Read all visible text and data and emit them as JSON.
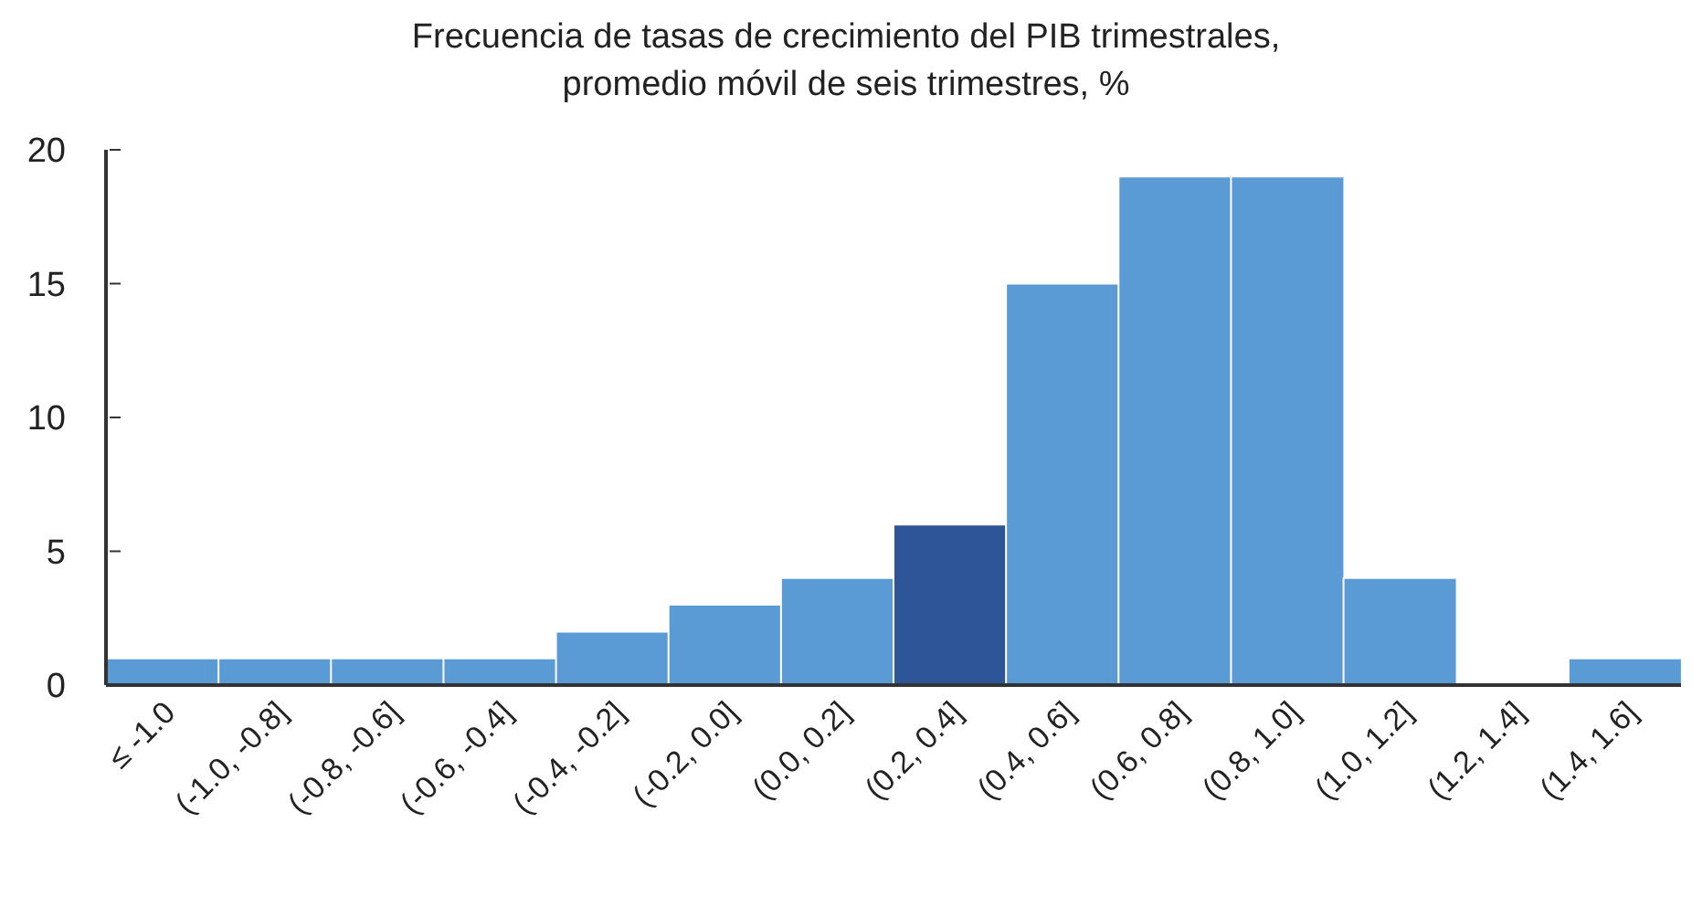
{
  "chart_data": {
    "type": "bar",
    "title": "Frecuencia de tasas de crecimiento del PIB trimestrales,\npromedio móvil de seis trimestres, %",
    "categories": [
      "≤ -1.0",
      "(-1.0, -0.8]",
      "(-0.8, -0.6]",
      "(-0.6, -0.4]",
      "(-0.4, -0.2]",
      "(-0.2, 0.0]",
      "(0.0, 0.2]",
      "(0.2, 0.4]",
      "(0.4, 0.6]",
      "(0.6, 0.8]",
      "(0.8, 1.0]",
      "(1.0, 1.2]",
      "(1.2, 1.4]",
      "(1.4, 1.6]"
    ],
    "values": [
      1,
      1,
      1,
      1,
      2,
      3,
      4,
      6,
      15,
      19,
      19,
      4,
      0,
      1
    ],
    "colors": [
      "#5b9bd5",
      "#5b9bd5",
      "#5b9bd5",
      "#5b9bd5",
      "#5b9bd5",
      "#5b9bd5",
      "#5b9bd5",
      "#2e5597",
      "#5b9bd5",
      "#5b9bd5",
      "#5b9bd5",
      "#5b9bd5",
      "#5b9bd5",
      "#5b9bd5"
    ],
    "ylim": [
      0,
      20
    ],
    "yticks": [
      0,
      5,
      10,
      15,
      20
    ],
    "grid": false,
    "legend": false
  }
}
